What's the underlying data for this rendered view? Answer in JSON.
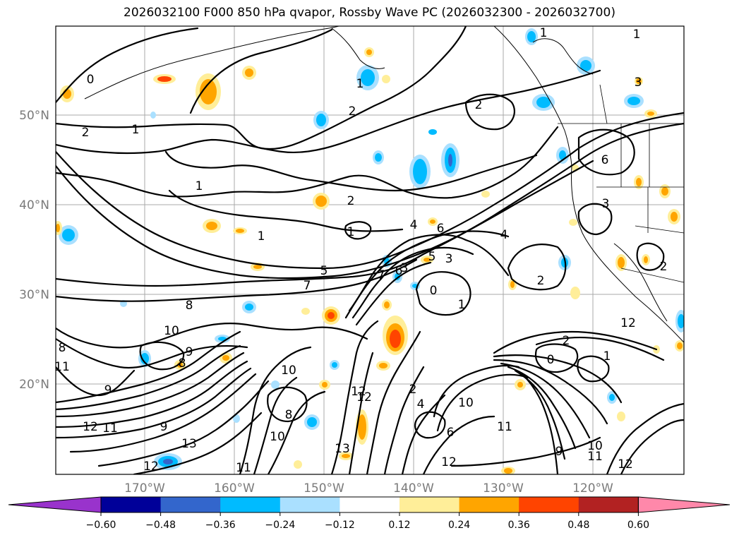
{
  "title": "2026032100 F000 850 hPa qvapor, Rossby Wave PC (2026032300 - 2026032700)",
  "map": {
    "lat_labels": [
      "50°N",
      "40°N",
      "30°N",
      "20°N"
    ],
    "lon_labels": [
      "170°W",
      "160°W",
      "150°W",
      "140°W",
      "130°W",
      "120°W"
    ],
    "contour_labels": [
      "0",
      "1",
      "2",
      "1",
      "2",
      "1",
      "2",
      "1",
      "2",
      "1",
      "5",
      "4",
      "6",
      "7",
      "4",
      "3",
      "5",
      "6",
      "3",
      "7",
      "8",
      "10",
      "9",
      "8",
      "9",
      "11",
      "12",
      "13",
      "12",
      "10",
      "8",
      "10",
      "11",
      "13",
      "12",
      "2",
      "4",
      "10",
      "11",
      "6",
      "9",
      "12",
      "10",
      "11",
      "12",
      "2",
      "0",
      "6",
      "3",
      "1",
      "2",
      "3",
      "1",
      "2",
      "1",
      "12",
      "1",
      "0",
      "8",
      "11",
      "12",
      "9"
    ]
  },
  "colorbar": {
    "ticks": [
      "−0.60",
      "−0.48",
      "−0.36",
      "−0.24",
      "−0.12",
      "0.12",
      "0.24",
      "0.36",
      "0.48",
      "0.60"
    ],
    "colors": [
      "#9933cc",
      "#000099",
      "#3366cc",
      "#00bbff",
      "#aae0ff",
      "#ffffff",
      "#ffee99",
      "#ffa500",
      "#ff4400",
      "#b22222",
      "#ff88aa"
    ]
  }
}
